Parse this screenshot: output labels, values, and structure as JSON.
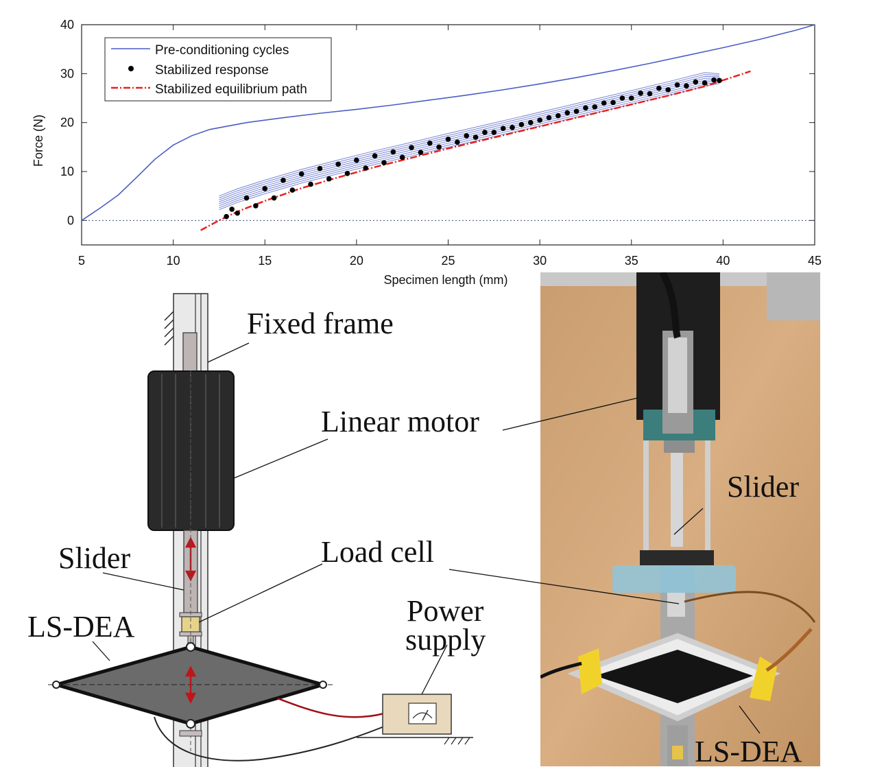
{
  "chart_data": {
    "type": "line",
    "xlabel": "Specimen length (mm)",
    "ylabel": "Force (N)",
    "xlim": [
      5,
      45
    ],
    "ylim": [
      -5,
      40
    ],
    "xticks": [
      "5",
      "10",
      "15",
      "20",
      "25",
      "30",
      "35",
      "40",
      "45"
    ],
    "yticks": [
      "0",
      "10",
      "20",
      "30",
      "40"
    ],
    "legend_position": "top-left",
    "legend": [
      "Pre-conditioning cycles",
      "Stabilized response",
      "Stabilized equilibrium path"
    ],
    "series": [
      {
        "name": "Pre-conditioning cycles",
        "color": "#4b5cc4",
        "style": "line",
        "x": [
          5,
          6,
          7,
          8,
          9,
          10,
          11,
          12,
          14,
          16,
          18,
          20,
          22,
          24,
          26,
          28,
          30,
          32,
          34,
          36,
          38,
          40,
          42,
          44,
          45
        ],
        "y": [
          0,
          2.5,
          5.2,
          8.8,
          12.5,
          15.4,
          17.3,
          18.6,
          20.0,
          21.0,
          21.9,
          22.7,
          23.6,
          24.6,
          25.6,
          26.7,
          27.9,
          29.2,
          30.6,
          32.1,
          33.7,
          35.3,
          37.0,
          38.9,
          40.0
        ]
      },
      {
        "name": "Stabilized response",
        "color": "#000000",
        "style": "markers",
        "x": [
          12.9,
          13.5,
          14.5,
          15.5,
          16.5,
          17.5,
          18.5,
          19.5,
          20.5,
          21.5,
          22.5,
          23.5,
          24.5,
          25.5,
          26.5,
          27.5,
          28.5,
          29.5,
          30.5,
          31.5,
          32.5,
          33.5,
          34.5,
          35.5,
          36.5,
          37.5,
          38.5,
          39.5,
          39.8,
          39.0,
          38.0,
          37.0,
          36.0,
          35.0,
          34.0,
          33.0,
          32.0,
          31.0,
          30.0,
          29.0,
          28.0,
          27.0,
          26.0,
          25.0,
          24.0,
          23.0,
          22.0,
          21.0,
          20.0,
          19.0,
          18.0,
          17.0,
          16.0,
          15.0,
          14.0,
          13.2
        ],
        "y": [
          0.8,
          1.5,
          3.0,
          4.6,
          6.2,
          7.4,
          8.5,
          9.6,
          10.7,
          11.8,
          12.9,
          13.9,
          15.0,
          16.0,
          17.0,
          18.0,
          19.0,
          20.0,
          21.0,
          22.0,
          23.0,
          24.0,
          25.0,
          26.0,
          27.0,
          27.7,
          28.3,
          28.7,
          28.6,
          28.1,
          27.5,
          26.7,
          25.9,
          25.0,
          24.1,
          23.2,
          22.3,
          21.4,
          20.5,
          19.6,
          18.8,
          18.0,
          17.3,
          16.6,
          15.8,
          14.9,
          14.0,
          13.2,
          12.3,
          11.5,
          10.6,
          9.5,
          8.2,
          6.5,
          4.6,
          2.3
        ]
      },
      {
        "name": "Stabilized equilibrium path",
        "color": "#e8211e",
        "style": "dashdot",
        "x": [
          11.5,
          12.5,
          13.5,
          15,
          17,
          19,
          21,
          23,
          25,
          27,
          29,
          31,
          33,
          35,
          37,
          39,
          41.5
        ],
        "y": [
          -2.0,
          0.0,
          1.8,
          4.0,
          6.6,
          8.8,
          10.9,
          12.8,
          14.7,
          16.5,
          18.3,
          20.1,
          21.9,
          23.7,
          25.5,
          27.4,
          30.5
        ]
      }
    ]
  },
  "schematic": {
    "labels": {
      "fixed_frame": "Fixed frame",
      "linear_motor": "Linear motor",
      "slider": "Slider",
      "load_cell": "Load cell",
      "ls_dea": "LS-DEA",
      "power_line1": "Power",
      "power_line2": "supply"
    }
  },
  "photo": {
    "labels": {
      "slider": "Slider",
      "ls_dea": "LS-DEA"
    }
  }
}
